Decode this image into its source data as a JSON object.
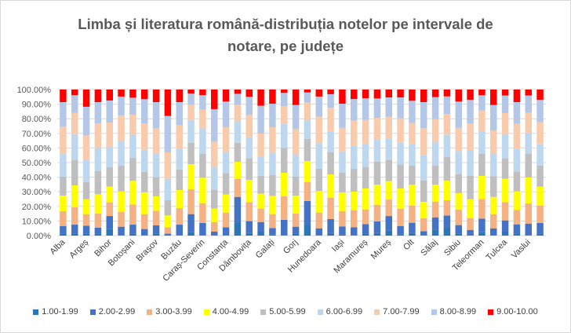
{
  "chart_data": {
    "type": "bar",
    "stacked": "percent",
    "title_lines": [
      "Limba și literatura română-distribuția notelor pe intervale de",
      "notare, pe județe"
    ],
    "xlabel": "",
    "ylabel": "",
    "ylim": [
      0,
      100
    ],
    "yticks": [
      "0.00%",
      "10.00%",
      "20.00%",
      "30.00%",
      "40.00%",
      "50.00%",
      "60.00%",
      "70.00%",
      "80.00%",
      "90.00%",
      "100.00%"
    ],
    "grid": true,
    "legend_position": "bottom",
    "categories": [
      "Alba",
      "",
      "Argeș",
      "",
      "Bihor",
      "",
      "Botoșani",
      "",
      "Brașov",
      "",
      "Buzău",
      "",
      "Caraș-Severin",
      "",
      "Constanța",
      "",
      "Dâmbovița",
      "",
      "Galați",
      "",
      "Gorj",
      "",
      "Hunedoara",
      "",
      "Iași",
      "",
      "Maramureș",
      "",
      "Mureș",
      "",
      "Olt",
      "",
      "Sălaj",
      "",
      "Sibiu",
      "",
      "Teleorman",
      "",
      "Tulcea",
      "",
      "Vaslui",
      ""
    ],
    "series": [
      {
        "name": "1.00-1.99",
        "color": "#2E75B6",
        "values": [
          1.4,
          1.4,
          1.4,
          1.3,
          4.5,
          0.4,
          1.3,
          0.4,
          1.3,
          0.3,
          0.4,
          2.5,
          0.4,
          0.4,
          0.4,
          8.6,
          1.8,
          2.7,
          0.9,
          0.4,
          1.3,
          7.5,
          0.4,
          1.8,
          0.9,
          0.4,
          1.3,
          1.8,
          3.6,
          0.9,
          1.8,
          0.4,
          4.1,
          5.4,
          1.3,
          0.2,
          2.3,
          0.4,
          2.7,
          1.3,
          0.4,
          1.3
        ]
      },
      {
        "name": "2.00-2.99",
        "color": "#4472C4",
        "values": [
          5.2,
          6.1,
          5.4,
          4.1,
          8.9,
          5.7,
          6.2,
          4.1,
          5.7,
          1.0,
          7.1,
          12.2,
          8.2,
          2.3,
          5.3,
          17.9,
          8.1,
          6.6,
          4.3,
          10.4,
          4.8,
          16.2,
          4.6,
          9.5,
          5.4,
          5.3,
          6.6,
          7.9,
          9.8,
          5.7,
          7.0,
          2.6,
          8.4,
          8.4,
          5.9,
          3.7,
          9.3,
          4.6,
          7.7,
          6.4,
          7.8,
          7.3
        ]
      },
      {
        "name": "3.00-3.99",
        "color": "#F4B183",
        "values": [
          10.1,
          12.0,
          7.9,
          9.8,
          9.4,
          10.2,
          13.8,
          10.2,
          10.0,
          4.4,
          11.3,
          17.0,
          13.6,
          6.6,
          10.1,
          12.4,
          12.9,
          9.2,
          9.5,
          16.1,
          9.1,
          13.0,
          10.8,
          14.7,
          10.5,
          11.7,
          10.0,
          11.4,
          11.3,
          11.7,
          11.8,
          8.8,
          10.8,
          10.4,
          10.7,
          8.1,
          13.5,
          9.7,
          12.5,
          9.9,
          13.8,
          12.0
        ]
      },
      {
        "name": "4.00-4.99",
        "color": "#FFFF00",
        "values": [
          10.7,
          14.9,
          10.2,
          13.1,
          10.7,
          14.0,
          16.2,
          15.0,
          9.9,
          8.1,
          12.4,
          17.2,
          17.4,
          9.2,
          12.3,
          11.6,
          15.4,
          10.2,
          12.5,
          16.1,
          12.2,
          14.4,
          14.7,
          15.9,
          12.8,
          12.7,
          14.4,
          13.8,
          12.6,
          14.0,
          14.2,
          11.3,
          11.6,
          13.4,
          11.1,
          12.9,
          15.8,
          11.8,
          16.0,
          12.7,
          17.8,
          12.9
        ]
      },
      {
        "name": "5.00-5.99",
        "color": "#BFBFBF",
        "values": [
          12.9,
          17.4,
          11.7,
          15.8,
          13.3,
          17.5,
          15.7,
          14.0,
          13.1,
          10.4,
          14.0,
          14.7,
          16.5,
          12.9,
          14.6,
          13.1,
          14.7,
          12.3,
          14.4,
          17.0,
          13.1,
          15.2,
          15.2,
          15.3,
          13.6,
          15.6,
          14.7,
          15.8,
          14.5,
          16.3,
          13.0,
          14.7,
          13.1,
          16.2,
          13.1,
          16.1,
          15.4,
          14.2,
          14.0,
          13.6,
          16.5,
          14.5
        ]
      },
      {
        "name": "6.00-6.99",
        "color": "#BDD7EE",
        "values": [
          15.6,
          17.7,
          15.0,
          15.9,
          14.0,
          16.9,
          16.0,
          15.1,
          16.1,
          14.5,
          14.1,
          15.6,
          17.2,
          15.7,
          14.8,
          14.7,
          14.5,
          13.1,
          15.2,
          16.5,
          15.1,
          12.9,
          17.6,
          13.8,
          14.5,
          15.8,
          15.4,
          14.9,
          14.7,
          15.0,
          14.6,
          17.4,
          16.2,
          15.2,
          15.8,
          17.6,
          15.4,
          15.2,
          16.5,
          15.6,
          13.6,
          14.5
        ]
      },
      {
        "name": "7.00-7.99",
        "color": "#F8CBAD",
        "values": [
          18.7,
          14.6,
          17.0,
          16.9,
          16.6,
          17.6,
          13.6,
          17.9,
          17.4,
          18.3,
          16.3,
          10.4,
          12.9,
          17.2,
          16.7,
          11.1,
          15.2,
          15.8,
          17.4,
          12.2,
          17.3,
          12.0,
          18.2,
          16.6,
          16.1,
          17.2,
          16.8,
          15.0,
          14.9,
          16.7,
          14.7,
          18.3,
          15.5,
          14.3,
          15.9,
          18.3,
          14.0,
          16.1,
          14.5,
          17.0,
          14.3,
          15.1
        ]
      },
      {
        "name": "8.00-8.99",
        "color": "#B4C7E7",
        "values": [
          16.8,
          12.1,
          19.6,
          14.5,
          15.1,
          12.9,
          11.6,
          16.7,
          17.9,
          24.9,
          15.8,
          7.7,
          10.0,
          22.3,
          17.6,
          7.7,
          12.4,
          19.0,
          16.1,
          9.0,
          16.5,
          6.8,
          13.7,
          9.2,
          16.5,
          14.8,
          14.9,
          13.3,
          13.2,
          14.3,
          15.2,
          17.9,
          15.1,
          12.0,
          18.0,
          16.1,
          10.4,
          17.4,
          12.0,
          14.9,
          11.7,
          15.4
        ]
      },
      {
        "name": "9.00-10.00",
        "color": "#FF0000",
        "values": [
          8.6,
          3.8,
          11.8,
          8.6,
          7.5,
          4.8,
          5.6,
          6.6,
          8.6,
          18.1,
          8.6,
          2.7,
          3.8,
          13.4,
          8.2,
          2.9,
          5.0,
          11.1,
          9.7,
          2.3,
          10.6,
          2.0,
          4.8,
          3.2,
          9.7,
          6.5,
          5.9,
          6.1,
          5.4,
          5.4,
          7.7,
          8.6,
          5.2,
          4.7,
          8.2,
          7.0,
          3.9,
          10.6,
          4.1,
          8.6,
          4.1,
          7.0
        ]
      }
    ]
  }
}
